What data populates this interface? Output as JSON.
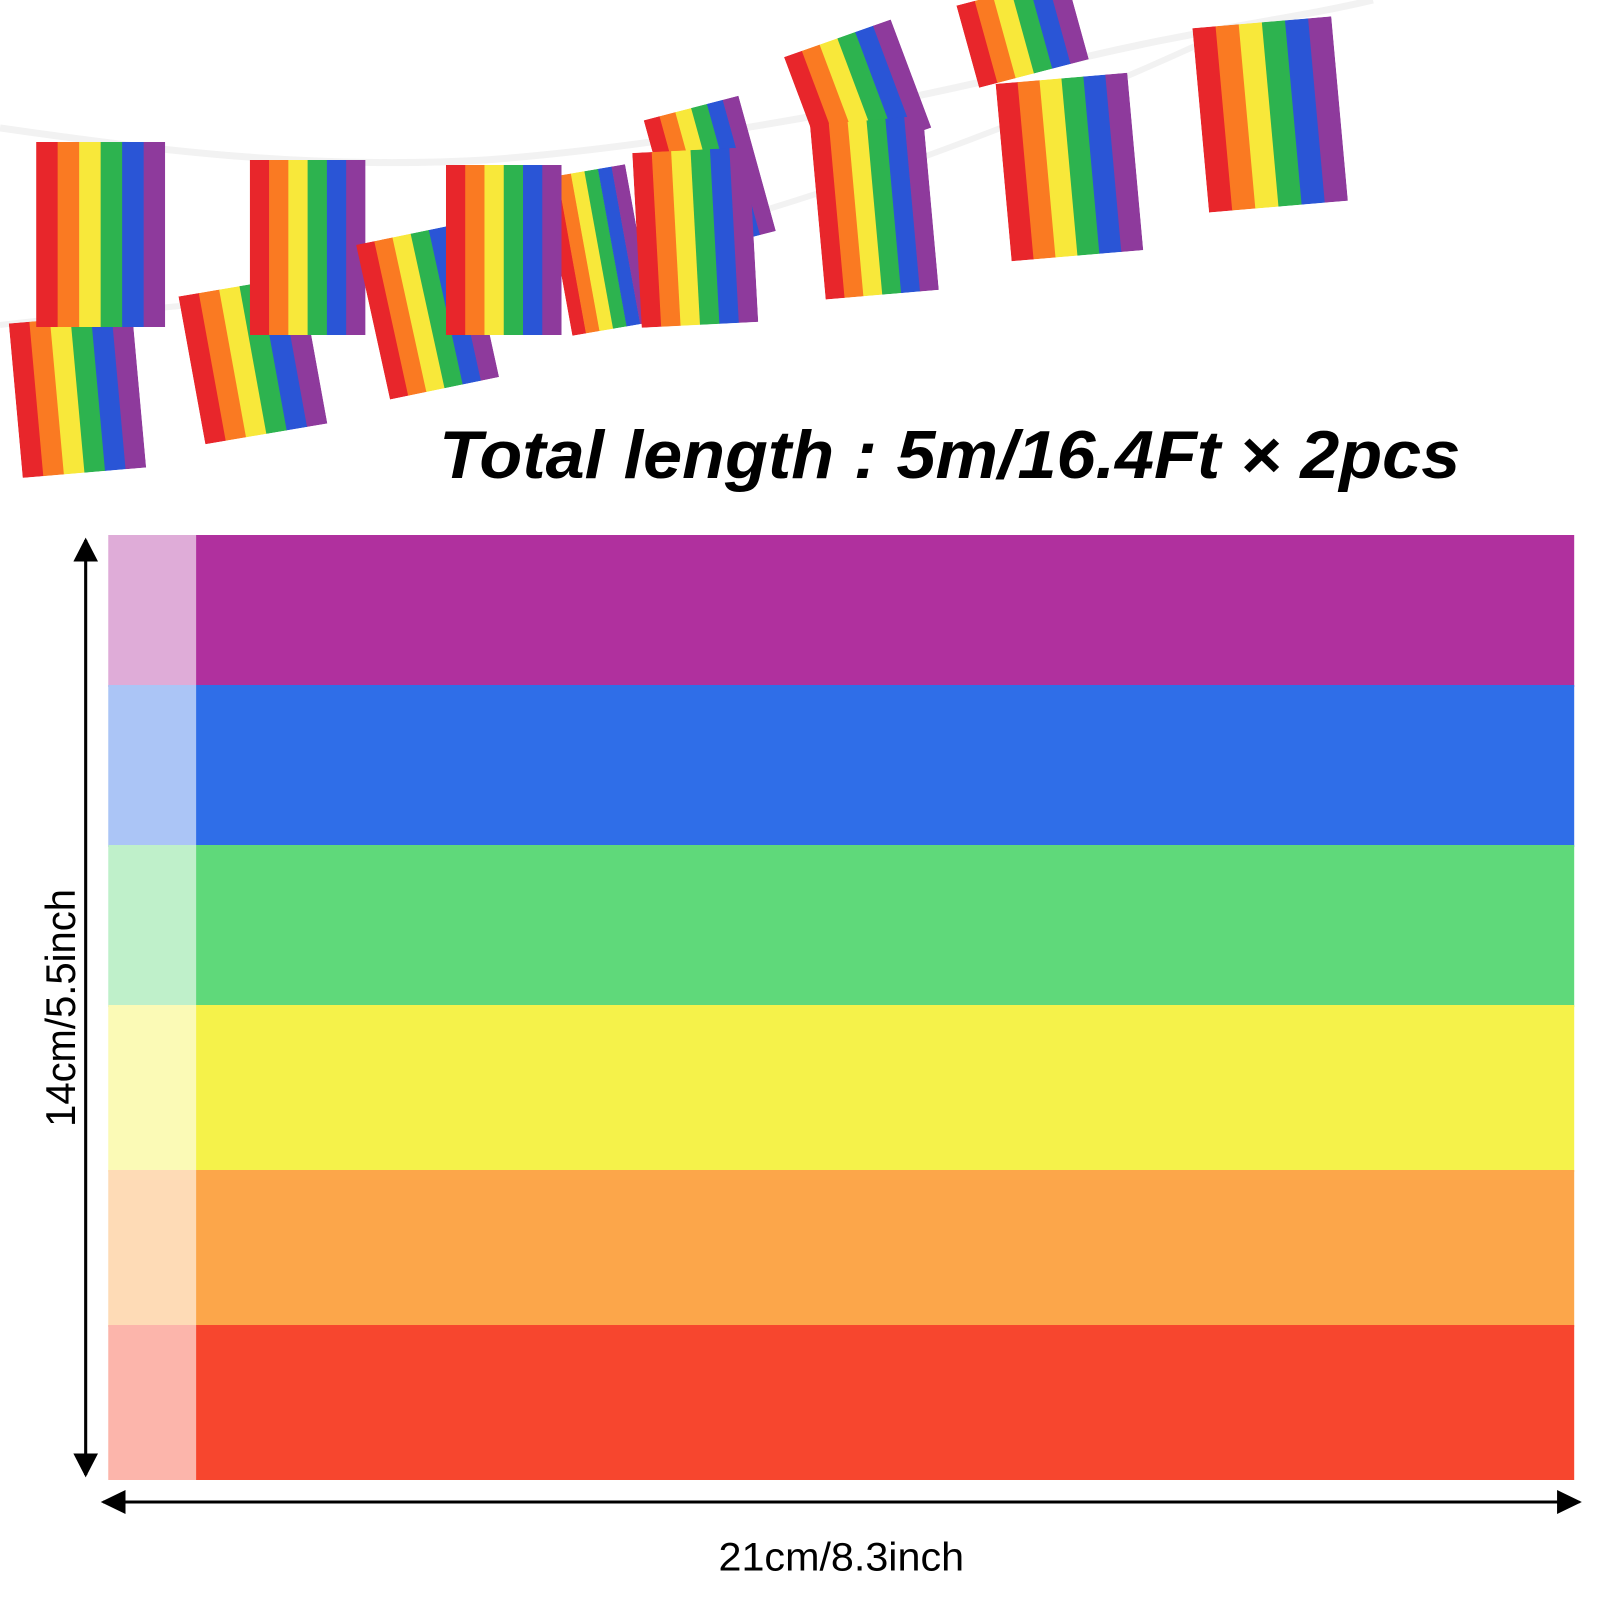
{
  "header": {
    "title": "Total length : 5m/16.4Ft × 2pcs"
  },
  "dimensions": {
    "height": "14cm/5.5inch",
    "width": "21cm/8.3inch"
  }
}
